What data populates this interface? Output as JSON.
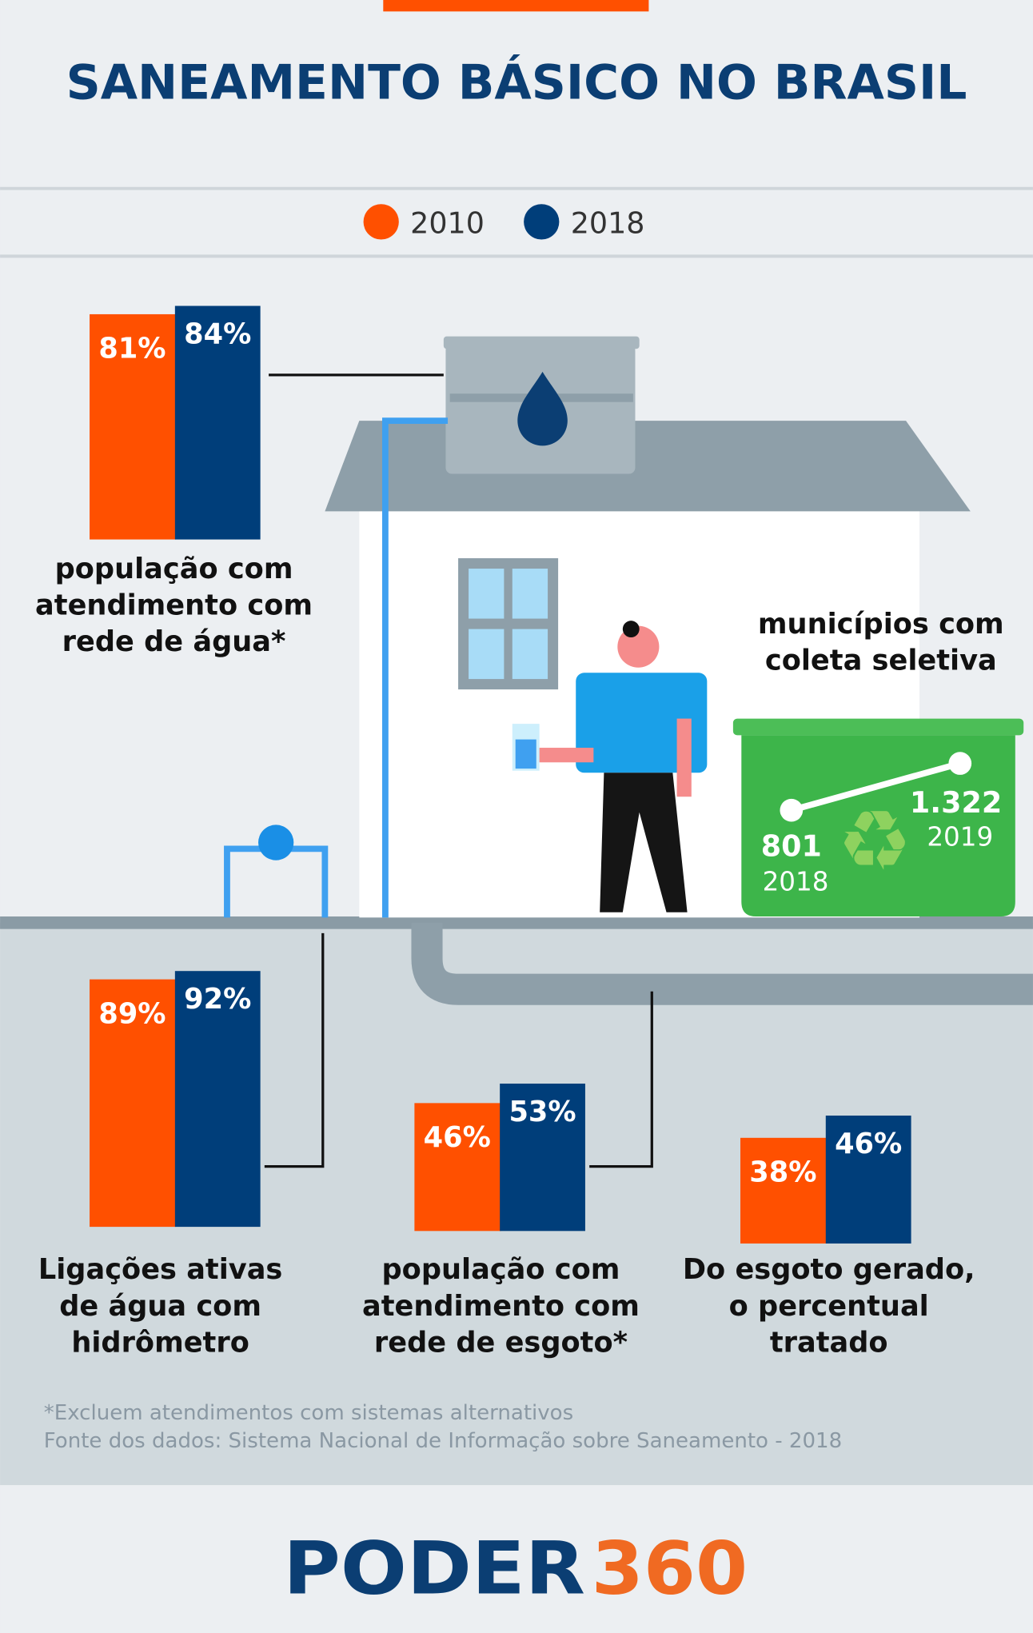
{
  "title": "SANEAMENTO BÁSICO NO BRASIL",
  "colors": {
    "2010": "#ff5000",
    "2018": "#003e7a",
    "recycling_bin": "#3db54a",
    "pipe": "#3fa0f0"
  },
  "legend": [
    "2010",
    "2018"
  ],
  "chart_data": [
    {
      "type": "bar",
      "label_lines": [
        "população com",
        "atendimento com",
        "rede de água*"
      ],
      "series": [
        {
          "name": "2010",
          "value": 81
        },
        {
          "name": "2018",
          "value": 84
        }
      ],
      "labels": [
        "81%",
        "84%"
      ]
    },
    {
      "type": "bar",
      "label_lines": [
        "Ligações ativas",
        "de água com",
        "hidrômetro"
      ],
      "series": [
        {
          "name": "2010",
          "value": 89
        },
        {
          "name": "2018",
          "value": 92
        }
      ],
      "labels": [
        "89%",
        "92%"
      ]
    },
    {
      "type": "bar",
      "label_lines": [
        "população com",
        "atendimento com",
        "rede de esgoto*"
      ],
      "series": [
        {
          "name": "2010",
          "value": 46
        },
        {
          "name": "2018",
          "value": 53
        }
      ],
      "labels": [
        "46%",
        "53%"
      ]
    },
    {
      "type": "bar",
      "label_lines": [
        "Do esgoto gerado,",
        "o percentual",
        "tratado"
      ],
      "series": [
        {
          "name": "2010",
          "value": 38
        },
        {
          "name": "2018",
          "value": 46
        }
      ],
      "labels": [
        "38%",
        "46%"
      ]
    },
    {
      "type": "line",
      "label_lines": [
        "municípios com",
        "coleta seletiva"
      ],
      "x": [
        "2018",
        "2019"
      ],
      "y": [
        801,
        1322
      ],
      "labels": [
        "801",
        "1.322"
      ]
    }
  ],
  "footnotes": [
    "*Excluem atendimentos com sistemas alternativos",
    "Fonte dos dados: Sistema Nacional de Informação sobre Saneamento - 2018"
  ],
  "logo": {
    "part1": "PODER",
    "part2": "360"
  }
}
